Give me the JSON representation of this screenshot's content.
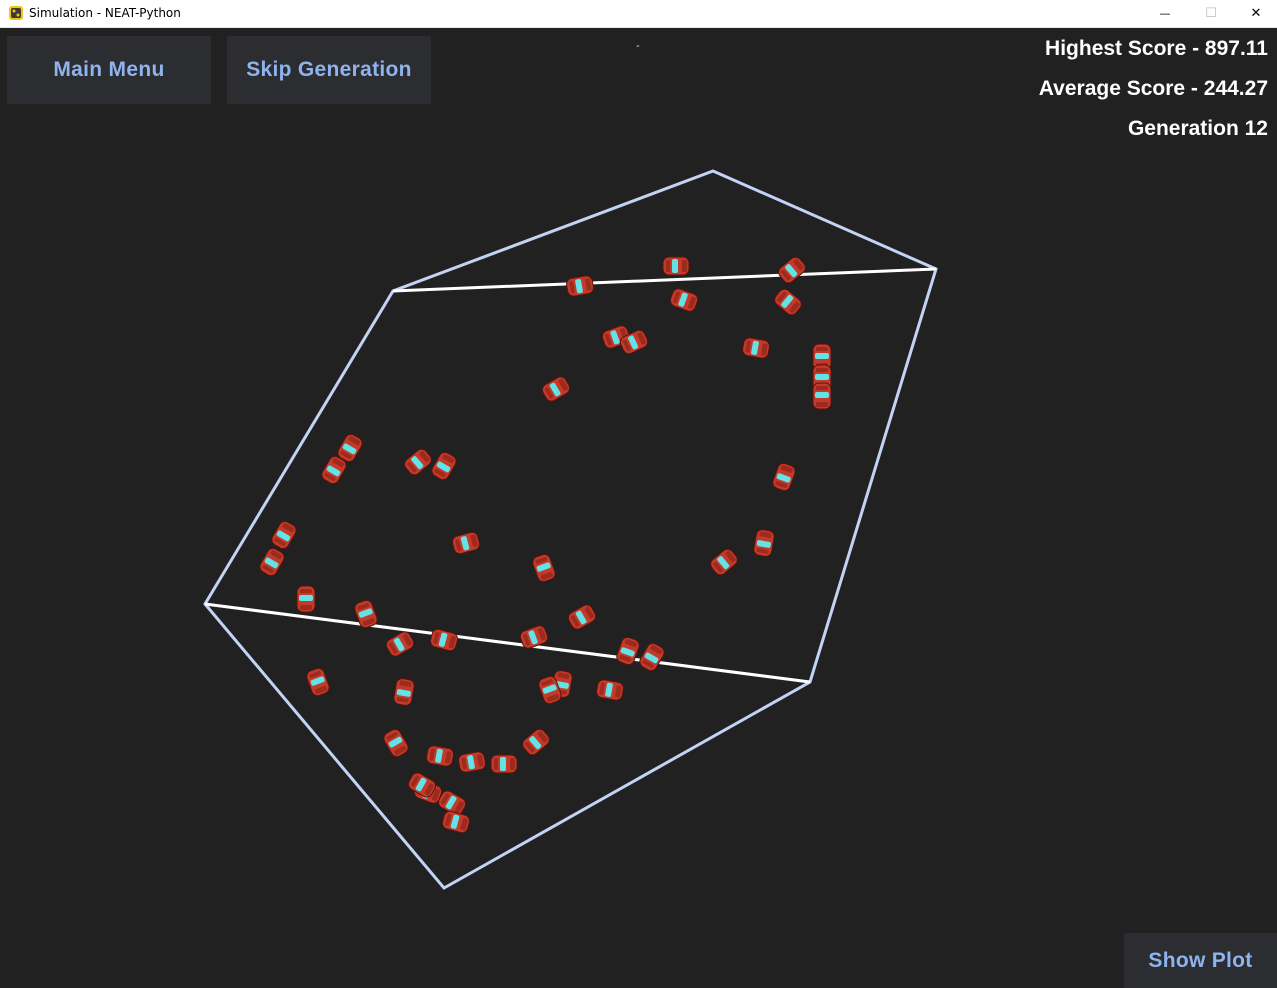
{
  "window": {
    "title": "Simulation - NEAT-Python",
    "minimize_glyph": "—",
    "maximize_glyph": "☐",
    "close_glyph": "✕"
  },
  "toolbar": {
    "main_menu_label": "Main Menu",
    "skip_generation_label": "Skip Generation",
    "status_dash": "-"
  },
  "stats": {
    "highest_score": "Highest Score - 897.11",
    "average_score": "Average Score - 244.27",
    "generation": "Generation 12"
  },
  "footer": {
    "show_plot_label": "Show Plot"
  },
  "colors": {
    "background": "#212121",
    "button_bg": "#2c2d31",
    "button_text": "#8fb3ef",
    "track_outline": "#c3d3f5",
    "track_inner": "#ffffff",
    "car_body": "#c23b2a",
    "car_window": "#63e3e6"
  },
  "icons": {
    "app": "python-icon"
  }
}
